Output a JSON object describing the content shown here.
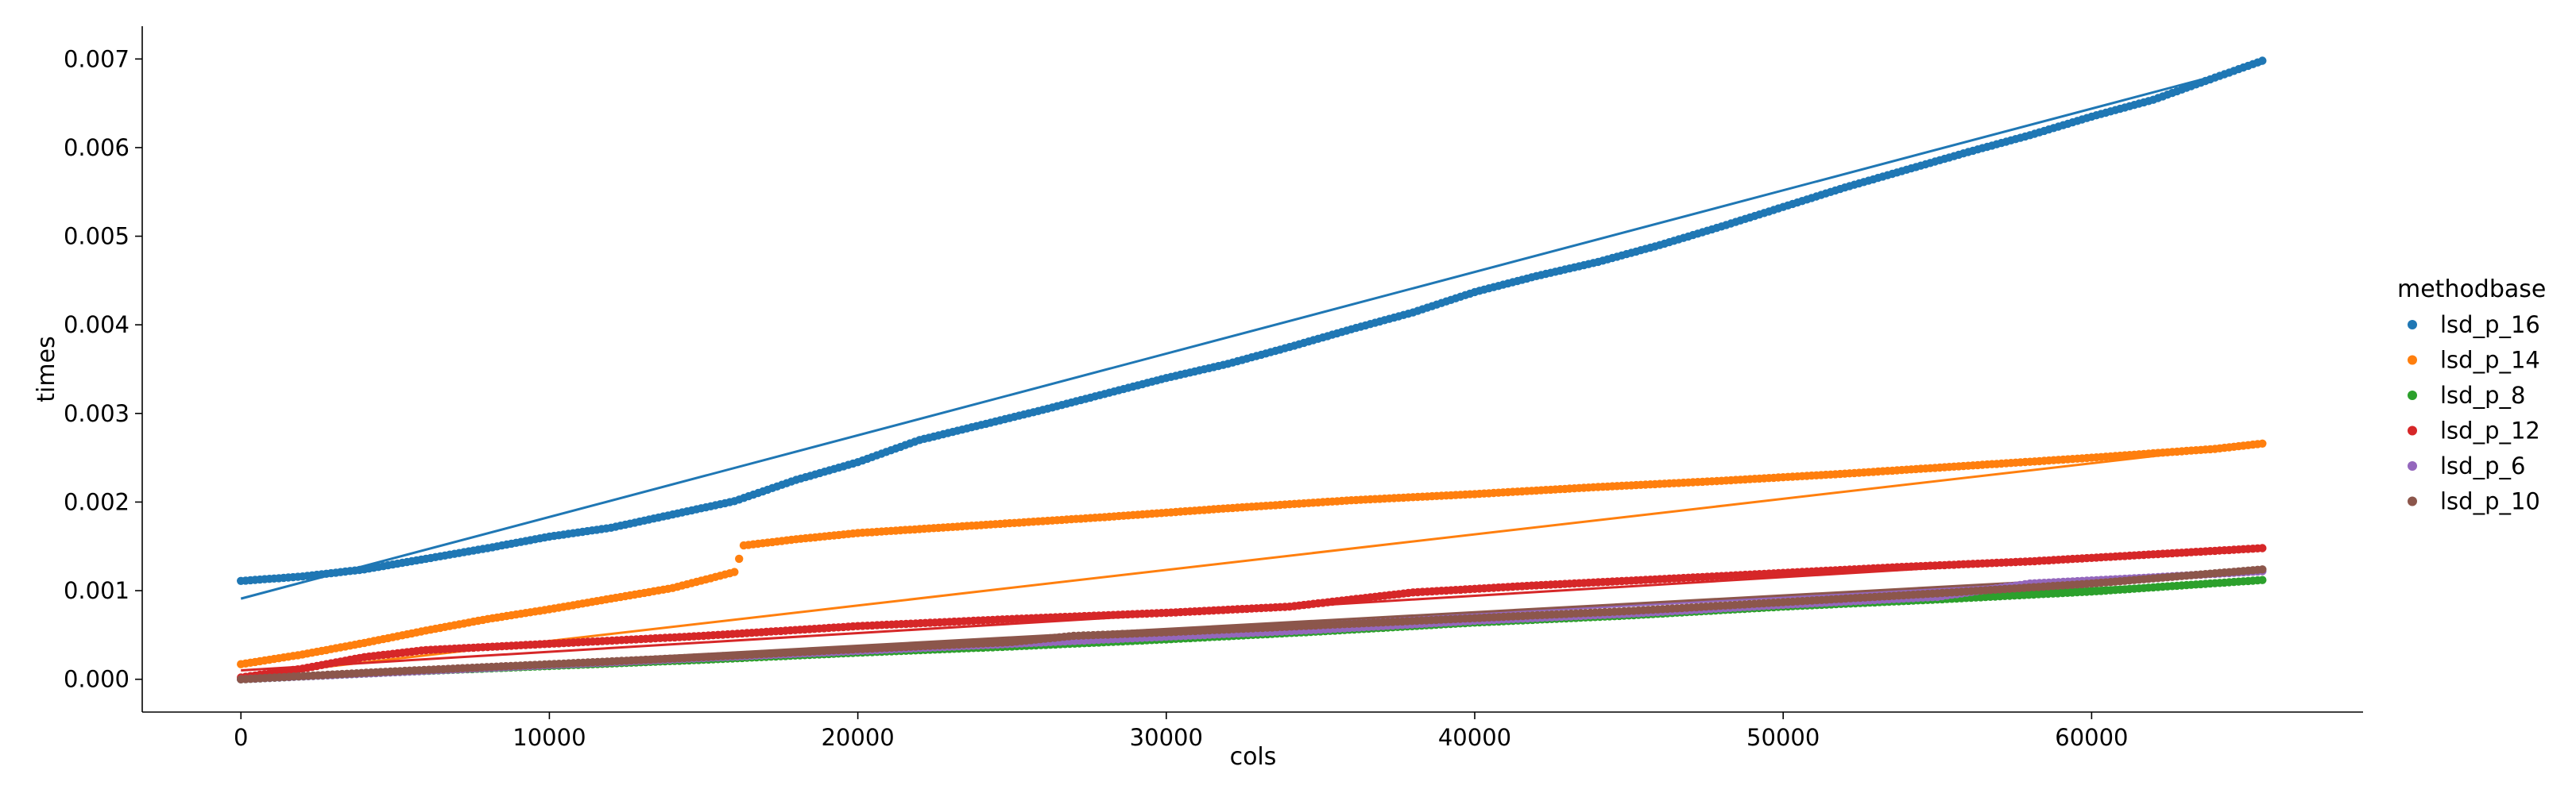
{
  "chart_data": {
    "type": "scatter",
    "title": "",
    "xlabel": "cols",
    "ylabel": "times",
    "xlim": [
      -3200,
      68800
    ],
    "ylim": [
      -0.00037,
      0.00737
    ],
    "x_ticks": [
      0,
      10000,
      20000,
      30000,
      40000,
      50000,
      60000
    ],
    "x_tick_labels": [
      "0",
      "10000",
      "20000",
      "30000",
      "40000",
      "50000",
      "60000"
    ],
    "y_ticks": [
      0.0,
      0.001,
      0.002,
      0.003,
      0.004,
      0.005,
      0.006,
      0.007
    ],
    "y_tick_labels": [
      "0.000",
      "0.001",
      "0.002",
      "0.003",
      "0.004",
      "0.005",
      "0.006",
      "0.007"
    ],
    "grid": false,
    "legend": {
      "title": "methodbase",
      "placement": "right"
    },
    "has_regression_lines": true,
    "series": [
      {
        "name": "lsd_p_16",
        "color": "#1f77b4",
        "x": [
          0,
          2000,
          4000,
          6000,
          8000,
          10000,
          12000,
          14000,
          16000,
          18000,
          20000,
          22000,
          24000,
          26000,
          28000,
          30000,
          32000,
          34000,
          36000,
          38000,
          40000,
          42000,
          44000,
          46000,
          48000,
          50000,
          52000,
          54000,
          56000,
          58000,
          60000,
          62000,
          64000,
          65536
        ],
        "values": [
          0.00111,
          0.00116,
          0.00124,
          0.00136,
          0.00148,
          0.00161,
          0.00171,
          0.00186,
          0.00201,
          0.00225,
          0.00245,
          0.0027,
          0.00287,
          0.00304,
          0.00322,
          0.0034,
          0.00356,
          0.00375,
          0.00395,
          0.00414,
          0.00437,
          0.00455,
          0.00471,
          0.0049,
          0.00511,
          0.00533,
          0.00555,
          0.00575,
          0.00595,
          0.00614,
          0.00635,
          0.00654,
          0.00679,
          0.00698
        ],
        "fit": [
          0.00091,
          0.00695
        ]
      },
      {
        "name": "lsd_p_14",
        "color": "#ff7f0e",
        "x": [
          0,
          2000,
          4000,
          6000,
          8000,
          10000,
          12000,
          14000,
          16000,
          16300,
          18000,
          20000,
          24000,
          28000,
          32000,
          36000,
          40000,
          44000,
          48000,
          52000,
          56000,
          60000,
          64000,
          65536
        ],
        "values": [
          0.00017,
          0.00028,
          0.00041,
          0.00055,
          0.00068,
          0.00079,
          0.00091,
          0.00103,
          0.00121,
          0.00151,
          0.00158,
          0.00165,
          0.00174,
          0.00183,
          0.00193,
          0.00202,
          0.00209,
          0.00217,
          0.00224,
          0.00232,
          0.00241,
          0.0025,
          0.0026,
          0.00266
        ],
        "fit": [
          3e-05,
          0.00266
        ]
      },
      {
        "name": "lsd_p_8",
        "color": "#2ca02c",
        "x": [
          0,
          5000,
          10000,
          15000,
          20000,
          25000,
          30000,
          35000,
          40000,
          45000,
          50000,
          55000,
          60000,
          65536
        ],
        "values": [
          0.0,
          8e-05,
          0.00015,
          0.00022,
          0.0003,
          0.00037,
          0.00045,
          0.00054,
          0.00064,
          0.00072,
          0.00082,
          0.0009,
          0.00099,
          0.00112
        ],
        "fit": [
          0.0,
          0.00112
        ]
      },
      {
        "name": "lsd_p_12",
        "color": "#d62728",
        "x": [
          0,
          2000,
          4000,
          6000,
          10000,
          15000,
          20000,
          25000,
          30000,
          34000,
          38000,
          42000,
          46000,
          50000,
          54000,
          58000,
          62000,
          65536
        ],
        "values": [
          2e-05,
          0.00012,
          0.00025,
          0.00033,
          0.0004,
          0.00049,
          0.0006,
          0.00068,
          0.00075,
          0.00082,
          0.00098,
          0.00106,
          0.00113,
          0.0012,
          0.00127,
          0.00133,
          0.00141,
          0.00148
        ],
        "fit": [
          0.0001,
          0.00148
        ]
      },
      {
        "name": "lsd_p_6",
        "color": "#9467bd",
        "x": [
          0,
          5000,
          10000,
          15000,
          20000,
          25000,
          30000,
          35000,
          40000,
          45000,
          50000,
          55000,
          58000,
          62000,
          65536
        ],
        "values": [
          0.0,
          8e-05,
          0.00016,
          0.00024,
          0.00032,
          0.0004,
          0.00048,
          0.00056,
          0.00066,
          0.00074,
          0.00084,
          0.00093,
          0.00108,
          0.00115,
          0.00122
        ],
        "fit": [
          0.0,
          0.00121
        ]
      },
      {
        "name": "lsd_p_10",
        "color": "#8c564b",
        "x": [
          0,
          5000,
          10000,
          15000,
          20000,
          25000,
          27000,
          30000,
          35000,
          40000,
          45000,
          50000,
          55000,
          60000,
          65536
        ],
        "values": [
          0.0,
          9e-05,
          0.00017,
          0.00025,
          0.00034,
          0.00042,
          0.00049,
          0.00053,
          0.00061,
          0.00069,
          0.00077,
          0.00087,
          0.00097,
          0.00108,
          0.00124
        ],
        "fit": [
          0.0,
          0.00124
        ]
      }
    ]
  }
}
